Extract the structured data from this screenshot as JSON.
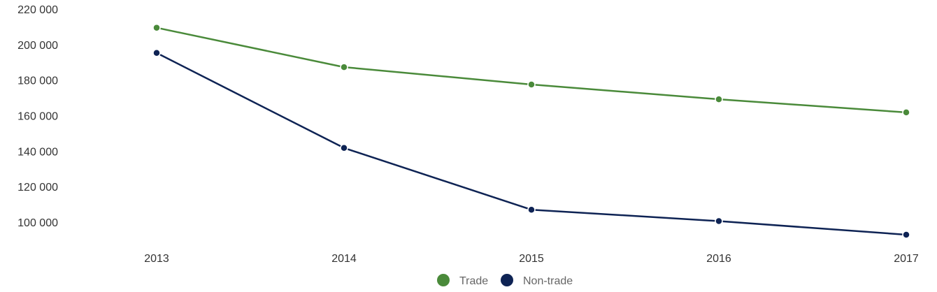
{
  "chart_data": {
    "type": "line",
    "title": "",
    "xlabel": "",
    "ylabel": "",
    "x": [
      "2013",
      "2014",
      "2015",
      "2016",
      "2017"
    ],
    "ylim": [
      88000,
      220000
    ],
    "yticks": [
      100000,
      120000,
      140000,
      160000,
      180000,
      200000,
      220000
    ],
    "ytick_labels": [
      "100 000",
      "120 000",
      "140 000",
      "160 000",
      "180 000",
      "200 000",
      "220 000"
    ],
    "grid": false,
    "legend_position": "bottom-center",
    "series": [
      {
        "name": "Trade",
        "color": "#4a8a3a",
        "values": [
          209500,
          187300,
          177500,
          169200,
          161800
        ]
      },
      {
        "name": "Non-trade",
        "color": "#0e2354",
        "values": [
          195300,
          141800,
          107000,
          100600,
          92900
        ]
      }
    ]
  }
}
